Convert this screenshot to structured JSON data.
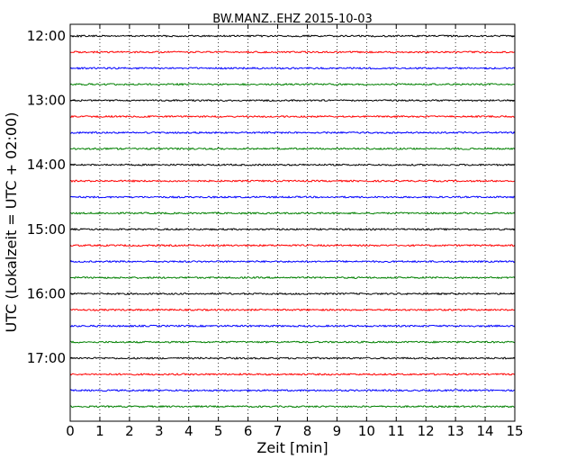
{
  "chart_data": {
    "type": "line",
    "title": "BW.MANZ..EHZ 2015-10-03",
    "xlabel": "Zeit  [min]",
    "ylabel": "UTC (Lokalzeit = UTC + 02:00)",
    "xlim": [
      0,
      15
    ],
    "x_ticks": [
      0,
      1,
      2,
      3,
      4,
      5,
      6,
      7,
      8,
      9,
      10,
      11,
      12,
      13,
      14,
      15
    ],
    "x_tick_labels": [
      "0",
      "1",
      "2",
      "3",
      "4",
      "5",
      "6",
      "7",
      "8",
      "9",
      "10",
      "11",
      "12",
      "13",
      "14",
      "15"
    ],
    "y_tick_labels": [
      "12:00",
      "13:00",
      "14:00",
      "15:00",
      "16:00",
      "17:00"
    ],
    "x_grid": true,
    "trace_interval_min": 15,
    "trace_colors": [
      "#000000",
      "#ff0000",
      "#0000ff",
      "#008000"
    ],
    "traces": [
      {
        "start": "12:00",
        "color": "#000000"
      },
      {
        "start": "12:15",
        "color": "#ff0000"
      },
      {
        "start": "12:30",
        "color": "#0000ff"
      },
      {
        "start": "12:45",
        "color": "#008000"
      },
      {
        "start": "13:00",
        "color": "#000000"
      },
      {
        "start": "13:15",
        "color": "#ff0000"
      },
      {
        "start": "13:30",
        "color": "#0000ff"
      },
      {
        "start": "13:45",
        "color": "#008000"
      },
      {
        "start": "14:00",
        "color": "#000000"
      },
      {
        "start": "14:15",
        "color": "#ff0000"
      },
      {
        "start": "14:30",
        "color": "#0000ff"
      },
      {
        "start": "14:45",
        "color": "#008000"
      },
      {
        "start": "15:00",
        "color": "#000000"
      },
      {
        "start": "15:15",
        "color": "#ff0000"
      },
      {
        "start": "15:30",
        "color": "#0000ff"
      },
      {
        "start": "15:45",
        "color": "#008000"
      },
      {
        "start": "16:00",
        "color": "#000000"
      },
      {
        "start": "16:15",
        "color": "#ff0000"
      },
      {
        "start": "16:30",
        "color": "#0000ff"
      },
      {
        "start": "16:45",
        "color": "#008000"
      },
      {
        "start": "17:00",
        "color": "#000000"
      },
      {
        "start": "17:15",
        "color": "#ff0000"
      },
      {
        "start": "17:30",
        "color": "#0000ff"
      },
      {
        "start": "17:45",
        "color": "#008000"
      }
    ]
  }
}
